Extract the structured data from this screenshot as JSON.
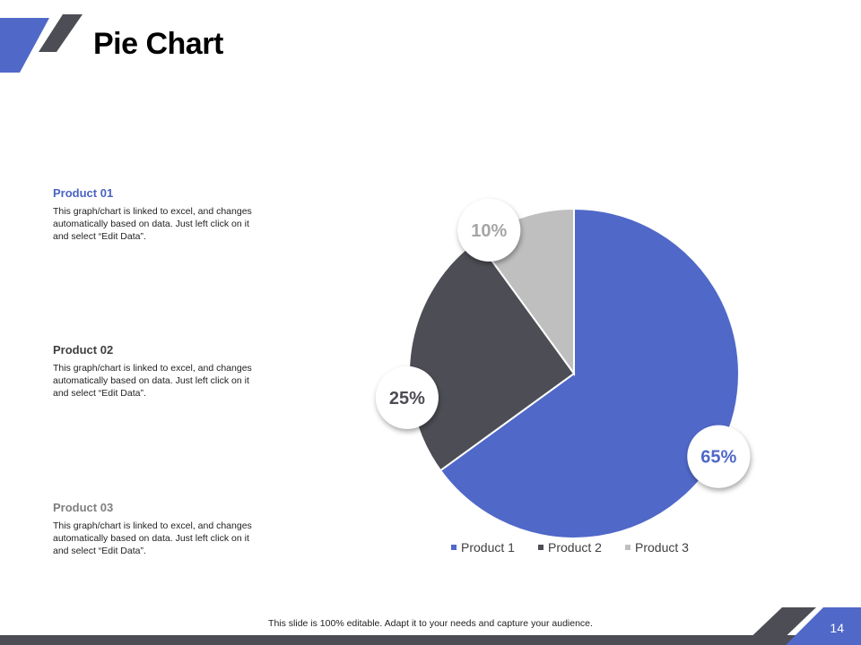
{
  "slide": {
    "title": "Pie Chart",
    "footer_note": "This slide is 100% editable. Adapt it to your needs and capture your audience.",
    "page_number": "14"
  },
  "colors": {
    "accent": "#5068C8",
    "dark": "#4D4D55",
    "light": "#BFBFBF",
    "heading_1": "#4A63C4",
    "heading_2": "#3F3F3F",
    "heading_3": "#7F7F7F"
  },
  "products": [
    {
      "heading": "Product 01",
      "description": "This graph/chart is linked to excel, and changes automatically based on data. Just left click on it and select “Edit Data”."
    },
    {
      "heading": "Product 02",
      "description": "This graph/chart is linked to excel, and changes automatically based on data. Just left click on it and select “Edit Data”."
    },
    {
      "heading": "Product 03",
      "description": "This graph/chart is linked to excel, and changes automatically based on data. Just left click on it and select “Edit Data”."
    }
  ],
  "chart_data": {
    "type": "pie",
    "slices": [
      {
        "name": "Product 1",
        "value": 65,
        "label": "65%",
        "color": "#5068C8"
      },
      {
        "name": "Product 2",
        "value": 25,
        "label": "25%",
        "color": "#4D4D55"
      },
      {
        "name": "Product 3",
        "value": 10,
        "label": "10%",
        "color": "#BFBFBF"
      }
    ],
    "legend_position": "bottom"
  }
}
